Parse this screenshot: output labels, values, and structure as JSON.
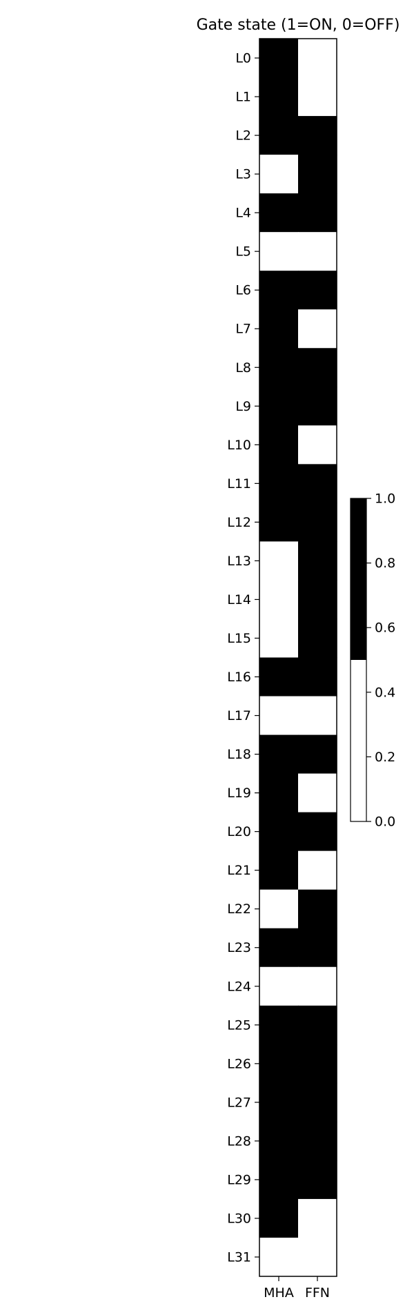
{
  "chart_data": {
    "type": "heatmap",
    "title": "Gate state (1=ON, 0=OFF)",
    "x_categories": [
      "MHA",
      "FFN"
    ],
    "y_categories": [
      "L0",
      "L1",
      "L2",
      "L3",
      "L4",
      "L5",
      "L6",
      "L7",
      "L8",
      "L9",
      "L10",
      "L11",
      "L12",
      "L13",
      "L14",
      "L15",
      "L16",
      "L17",
      "L18",
      "L19",
      "L20",
      "L21",
      "L22",
      "L23",
      "L24",
      "L25",
      "L26",
      "L27",
      "L28",
      "L29",
      "L30",
      "L31"
    ],
    "values": [
      [
        1,
        0
      ],
      [
        1,
        0
      ],
      [
        1,
        1
      ],
      [
        0,
        1
      ],
      [
        1,
        1
      ],
      [
        0,
        0
      ],
      [
        1,
        1
      ],
      [
        1,
        0
      ],
      [
        1,
        1
      ],
      [
        1,
        1
      ],
      [
        1,
        0
      ],
      [
        1,
        1
      ],
      [
        1,
        1
      ],
      [
        0,
        1
      ],
      [
        0,
        1
      ],
      [
        0,
        1
      ],
      [
        1,
        1
      ],
      [
        0,
        0
      ],
      [
        1,
        1
      ],
      [
        1,
        0
      ],
      [
        1,
        1
      ],
      [
        1,
        0
      ],
      [
        0,
        1
      ],
      [
        1,
        1
      ],
      [
        0,
        0
      ],
      [
        1,
        1
      ],
      [
        1,
        1
      ],
      [
        1,
        1
      ],
      [
        1,
        1
      ],
      [
        1,
        1
      ],
      [
        1,
        0
      ],
      [
        0,
        0
      ]
    ],
    "colormap": {
      "name": "binary (2 levels)",
      "colors": [
        "#ffffff",
        "#000000"
      ],
      "threshold": 0.5,
      "vmin": 0.0,
      "vmax": 1.0
    },
    "colorbar": {
      "ticks": [
        0.0,
        0.2,
        0.4,
        0.6,
        0.8,
        1.0
      ],
      "tick_labels": [
        "0.0",
        "0.2",
        "0.4",
        "0.6",
        "0.8",
        "1.0"
      ]
    },
    "grid": false,
    "legend": "colorbar right"
  }
}
